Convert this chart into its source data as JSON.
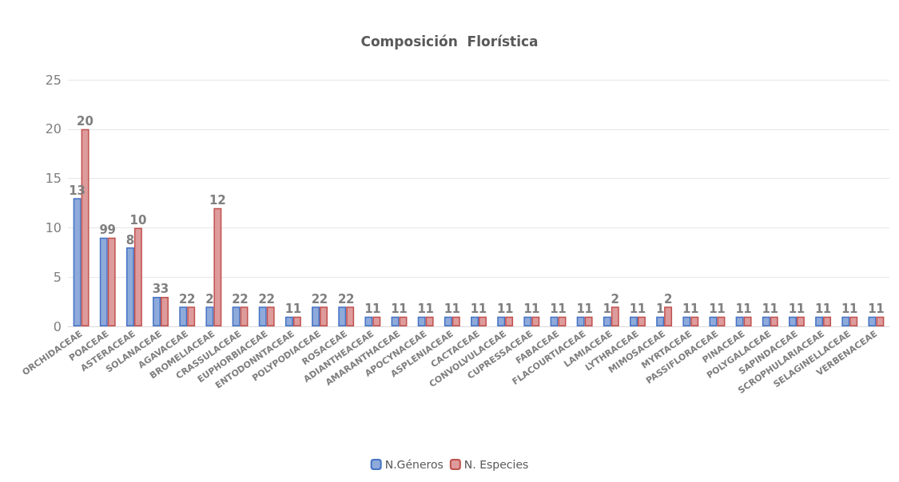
{
  "chart_data": {
    "type": "bar",
    "title": "Composición  Florística",
    "categories": [
      "ORCHIDACEAE",
      "POACEAE",
      "ASTERACEAE",
      "SOLANACEAE",
      "AGAVACEAE",
      "BROMELIACEAE",
      "CRASSULACEAE",
      "EUPHORBIACEAE",
      "ENTODONNTACEAE",
      "POLYPODIACEAE",
      "ROSACEAE",
      "ADIANTHEACEAE",
      "AMARANTHACEAE",
      "APOCYNACEAE",
      "ASPLENIACEAE",
      "CACTACEAE",
      "CONVOLVULACEAE",
      "CUPRESSACEAE",
      "FABACEAE",
      "FLACOURTIACEAE",
      "LAMIACEAE",
      "LYTHRACEAE",
      "MIMOSACEAE",
      "MYRTACEAE",
      "PASSIFLORACEAE",
      "PINACEAE",
      "POLYGALACEAE",
      "SAPINDACEAE",
      "SCROPHULARIACEAE",
      "SELAGINELLACEAE",
      "VERBENACEAE"
    ],
    "series": [
      {
        "name": "N.Géneros",
        "color": "#8eaadb",
        "values": [
          13,
          9,
          8,
          3,
          2,
          2,
          2,
          2,
          1,
          2,
          2,
          1,
          1,
          1,
          1,
          1,
          1,
          1,
          1,
          1,
          1,
          1,
          1,
          1,
          1,
          1,
          1,
          1,
          1,
          1,
          1
        ]
      },
      {
        "name": "N. Especies",
        "color": "#de9b9b",
        "values": [
          20,
          9,
          10,
          3,
          2,
          12,
          2,
          2,
          1,
          2,
          2,
          1,
          1,
          1,
          1,
          1,
          1,
          1,
          1,
          1,
          2,
          1,
          2,
          1,
          1,
          1,
          1,
          1,
          1,
          1,
          1
        ]
      }
    ],
    "ylim": [
      0,
      25
    ],
    "yticks": [
      0,
      5,
      10,
      15,
      20,
      25
    ],
    "grid": "y",
    "legend": "bottom",
    "data_labels": true
  }
}
